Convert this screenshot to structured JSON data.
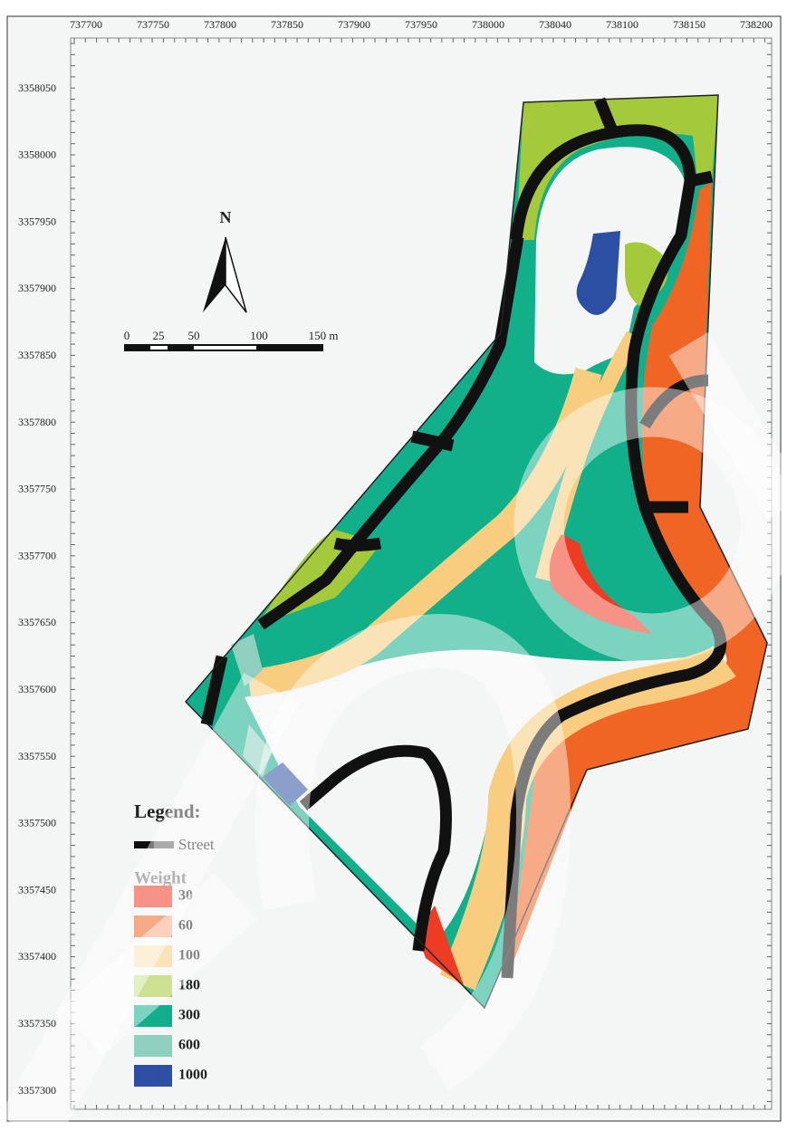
{
  "map": {
    "x_axis_labels": [
      737700,
      737750,
      737800,
      737850,
      737900,
      737950,
      738000,
      738040,
      738100,
      738150,
      738200
    ],
    "y_axis_labels": [
      3358050,
      3358000,
      3357950,
      3357900,
      3357850,
      3357800,
      3357750,
      3357700,
      3357650,
      3357600,
      3357550,
      3357500,
      3357450,
      3357400,
      3357350,
      3357300
    ],
    "north": "N",
    "scale_labels": [
      "0",
      "25",
      "50",
      "100",
      "150 m"
    ],
    "legend": {
      "title": "Legend:",
      "street": "Street",
      "weight_title": "Weight",
      "weights": [
        {
          "value": 30,
          "color": "#ee3b24"
        },
        {
          "value": 60,
          "color": "#f06424"
        },
        {
          "value": 100,
          "color": "#f8cd7f"
        },
        {
          "value": 180,
          "color": "#a4c93a"
        },
        {
          "value": 300,
          "color": "#12b08a"
        },
        {
          "value": 600,
          "color": "#8fcfc0"
        },
        {
          "value": 1000,
          "color": "#2d4fa3"
        }
      ]
    }
  }
}
